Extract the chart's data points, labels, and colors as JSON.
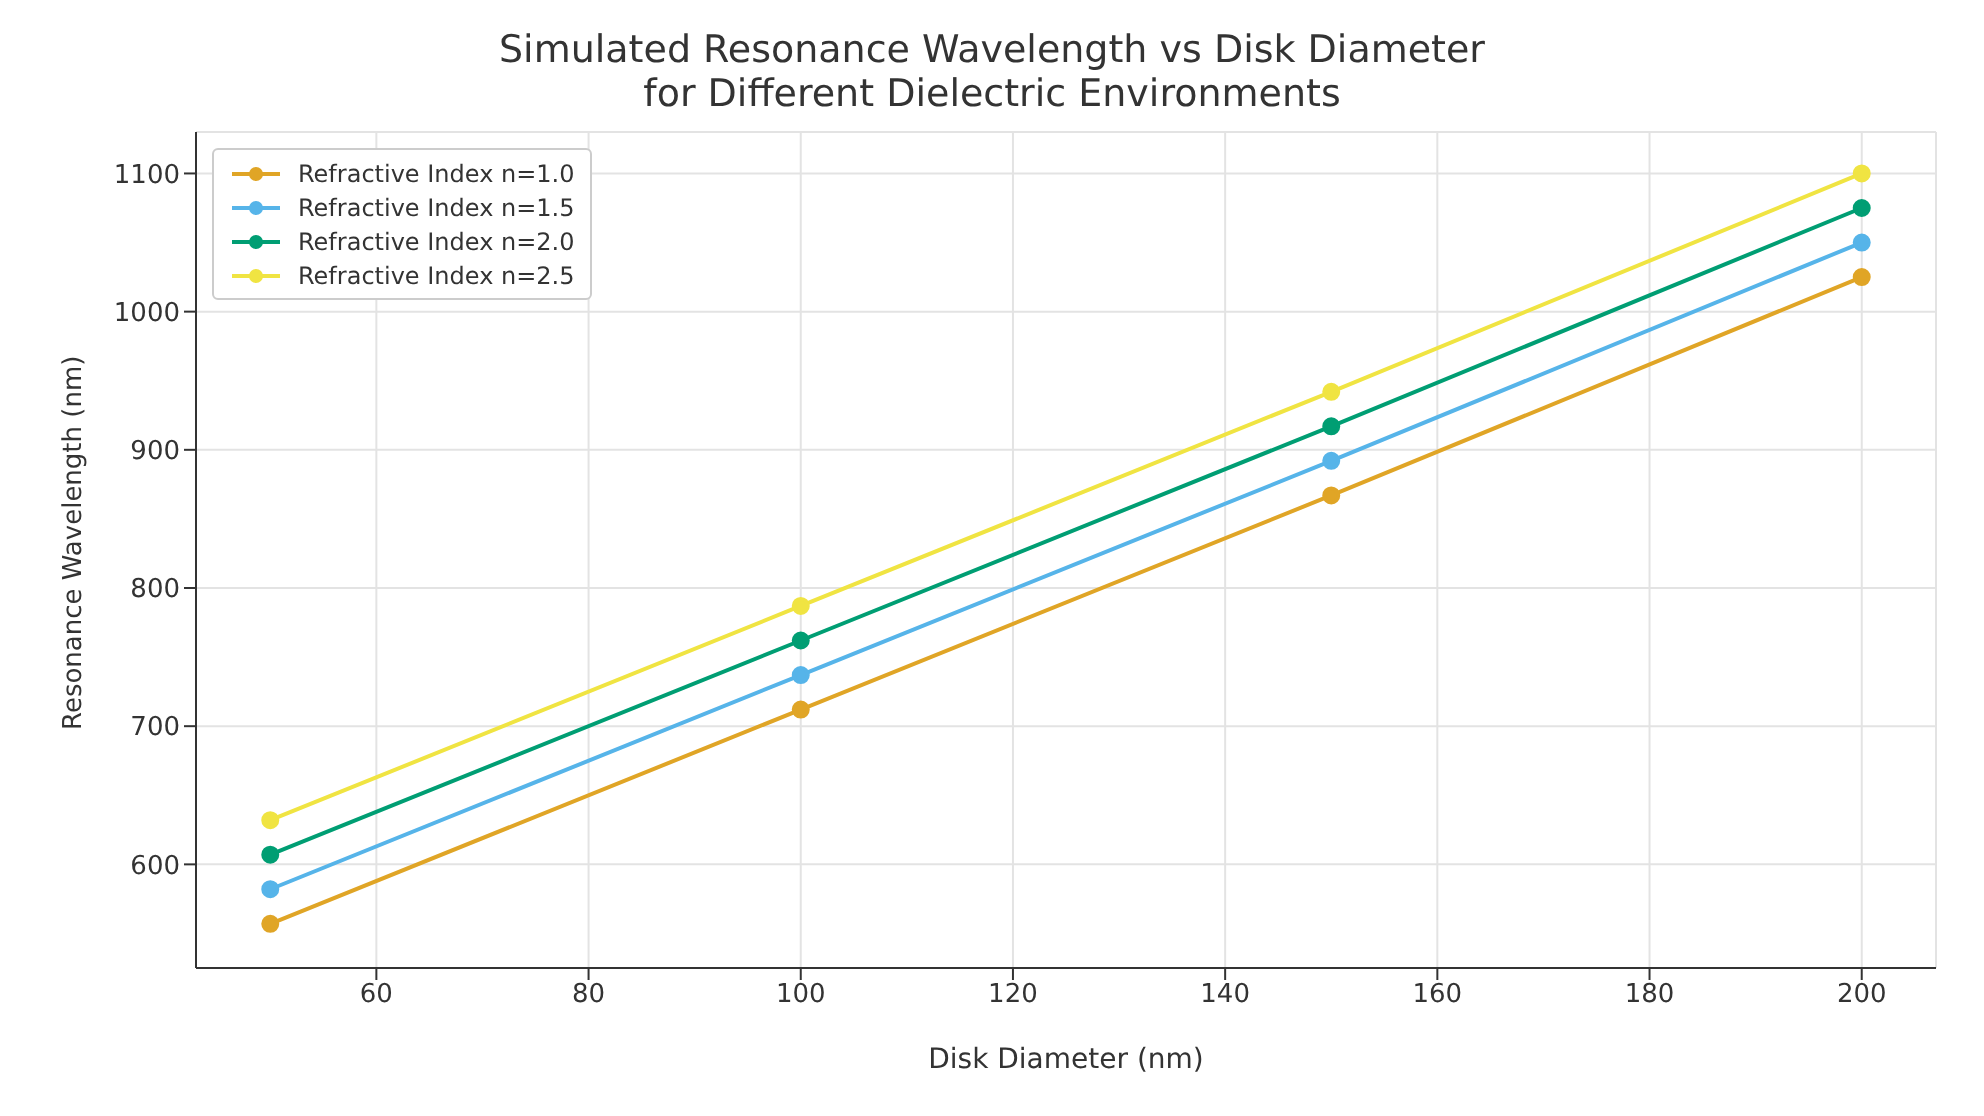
{
  "chart_data": {
    "type": "line",
    "title": "Simulated Resonance Wavelength vs Disk Diameter\nfor Different Dielectric Environments",
    "xlabel": "Disk Diameter (nm)",
    "ylabel": "Resonance Wavelength (nm)",
    "x": [
      50,
      100,
      150,
      200
    ],
    "series": [
      {
        "name": "Refractive Index n=1.0",
        "color": "#e0a526",
        "values": [
          557,
          712,
          867,
          1025
        ]
      },
      {
        "name": "Refractive Index n=1.5",
        "color": "#56b4e9",
        "values": [
          582,
          737,
          892,
          1050
        ]
      },
      {
        "name": "Refractive Index n=2.0",
        "color": "#009e73",
        "values": [
          607,
          762,
          917,
          1075
        ]
      },
      {
        "name": "Refractive Index n=2.5",
        "color": "#f0e442",
        "values": [
          632,
          787,
          942,
          1100
        ]
      }
    ],
    "xlim": [
      43,
      207
    ],
    "xticks": [
      60,
      80,
      100,
      120,
      140,
      160,
      180,
      200
    ],
    "ylim": [
      525,
      1130
    ],
    "yticks": [
      600,
      700,
      800,
      900,
      1000,
      1100
    ],
    "grid": true,
    "legend": "top left",
    "marker": "circle",
    "line_style": "solid"
  }
}
